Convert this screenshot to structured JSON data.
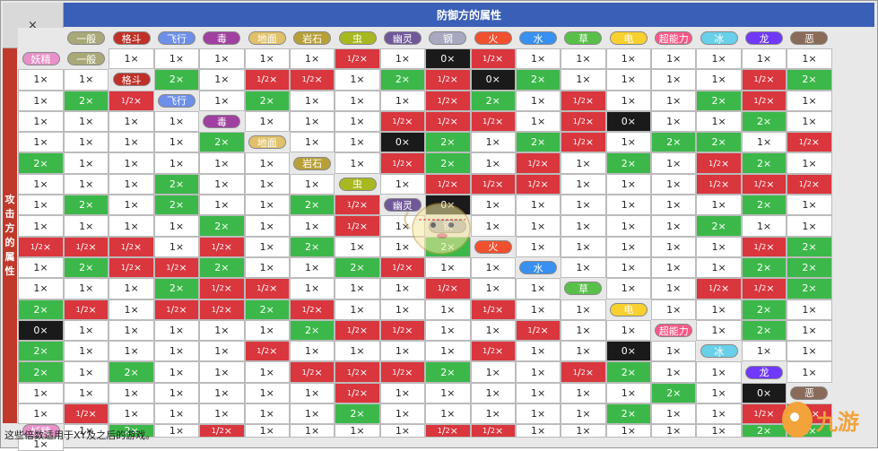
{
  "corner_label": "×",
  "defense_header": "防御方的属性",
  "attack_header": "攻击方的属性",
  "footnote": "这些倍数适用于XY及之后的游戏。",
  "logo_text": "九游",
  "types": [
    {
      "name": "一般",
      "color": "#a8a878"
    },
    {
      "name": "格斗",
      "color": "#c03028"
    },
    {
      "name": "飞行",
      "color": "#6d8fe8"
    },
    {
      "name": "毒",
      "color": "#a040a0"
    },
    {
      "name": "地面",
      "color": "#e0c068"
    },
    {
      "name": "岩石",
      "color": "#b8a038"
    },
    {
      "name": "虫",
      "color": "#a8b820"
    },
    {
      "name": "幽灵",
      "color": "#705898"
    },
    {
      "name": "钢",
      "color": "#a8a8c0"
    },
    {
      "name": "火",
      "color": "#f05030"
    },
    {
      "name": "水",
      "color": "#3890f0"
    },
    {
      "name": "草",
      "color": "#58c048"
    },
    {
      "name": "电",
      "color": "#f8d030"
    },
    {
      "name": "超能力",
      "color": "#f85888"
    },
    {
      "name": "冰",
      "color": "#68d0e8"
    },
    {
      "name": "龙",
      "color": "#7038f8"
    },
    {
      "name": "恶",
      "color": "#8a6a58"
    },
    {
      "name": "妖精",
      "color": "#e890c8"
    }
  ],
  "labels": {
    "n": "1×",
    "s": "2×",
    "z": "0×",
    "h_num": "1",
    "h_den": "2",
    "h_x": "×"
  },
  "matrix": [
    [
      "n",
      "n",
      "n",
      "n",
      "n",
      "h",
      "n",
      "z",
      "h",
      "n",
      "n",
      "n",
      "n",
      "n",
      "n",
      "n",
      "n",
      "n"
    ],
    [
      "s",
      "n",
      "h",
      "h",
      "n",
      "s",
      "h",
      "z",
      "s",
      "n",
      "n",
      "n",
      "n",
      "h",
      "s",
      "n",
      "s",
      "h"
    ],
    [
      "n",
      "s",
      "n",
      "n",
      "n",
      "h",
      "s",
      "n",
      "h",
      "n",
      "n",
      "s",
      "h",
      "n",
      "n",
      "n",
      "n",
      "n"
    ],
    [
      "n",
      "n",
      "n",
      "h",
      "h",
      "h",
      "n",
      "h",
      "z",
      "n",
      "n",
      "s",
      "n",
      "n",
      "n",
      "n",
      "n",
      "s"
    ],
    [
      "n",
      "n",
      "z",
      "s",
      "n",
      "s",
      "h",
      "n",
      "s",
      "s",
      "n",
      "h",
      "s",
      "n",
      "n",
      "n",
      "n",
      "n"
    ],
    [
      "n",
      "h",
      "s",
      "n",
      "h",
      "n",
      "s",
      "n",
      "h",
      "s",
      "n",
      "n",
      "n",
      "n",
      "s",
      "n",
      "n",
      "n"
    ],
    [
      "n",
      "h",
      "h",
      "h",
      "n",
      "n",
      "n",
      "h",
      "h",
      "h",
      "n",
      "s",
      "n",
      "s",
      "n",
      "n",
      "s",
      "h"
    ],
    [
      "z",
      "n",
      "n",
      "n",
      "n",
      "n",
      "n",
      "s",
      "n",
      "n",
      "n",
      "n",
      "n",
      "s",
      "n",
      "n",
      "h",
      "n"
    ],
    [
      "n",
      "n",
      "n",
      "n",
      "n",
      "s",
      "n",
      "n",
      "h",
      "h",
      "h",
      "n",
      "h",
      "n",
      "s",
      "n",
      "n",
      "s"
    ],
    [
      "n",
      "n",
      "n",
      "n",
      "n",
      "h",
      "s",
      "n",
      "s",
      "h",
      "h",
      "s",
      "n",
      "n",
      "s",
      "h",
      "n",
      "n"
    ],
    [
      "n",
      "n",
      "n",
      "n",
      "s",
      "s",
      "n",
      "n",
      "n",
      "s",
      "h",
      "h",
      "n",
      "n",
      "n",
      "h",
      "n",
      "n"
    ],
    [
      "n",
      "n",
      "h",
      "h",
      "s",
      "s",
      "h",
      "n",
      "h",
      "h",
      "s",
      "h",
      "n",
      "n",
      "n",
      "h",
      "n",
      "n"
    ],
    [
      "n",
      "n",
      "s",
      "n",
      "z",
      "n",
      "n",
      "n",
      "n",
      "n",
      "s",
      "h",
      "h",
      "n",
      "n",
      "h",
      "n",
      "n"
    ],
    [
      "n",
      "s",
      "n",
      "s",
      "n",
      "n",
      "n",
      "n",
      "h",
      "n",
      "n",
      "n",
      "n",
      "h",
      "n",
      "n",
      "z",
      "n"
    ],
    [
      "n",
      "n",
      "s",
      "n",
      "s",
      "n",
      "n",
      "n",
      "h",
      "h",
      "h",
      "s",
      "n",
      "n",
      "h",
      "s",
      "n",
      "n"
    ],
    [
      "n",
      "n",
      "n",
      "n",
      "n",
      "n",
      "n",
      "n",
      "h",
      "n",
      "n",
      "n",
      "n",
      "n",
      "n",
      "s",
      "n",
      "z"
    ],
    [
      "n",
      "h",
      "n",
      "n",
      "n",
      "n",
      "n",
      "s",
      "n",
      "n",
      "n",
      "n",
      "n",
      "s",
      "n",
      "n",
      "h",
      "h"
    ],
    [
      "n",
      "s",
      "n",
      "h",
      "n",
      "n",
      "n",
      "n",
      "h",
      "h",
      "n",
      "n",
      "n",
      "n",
      "n",
      "s",
      "s",
      "n"
    ]
  ]
}
